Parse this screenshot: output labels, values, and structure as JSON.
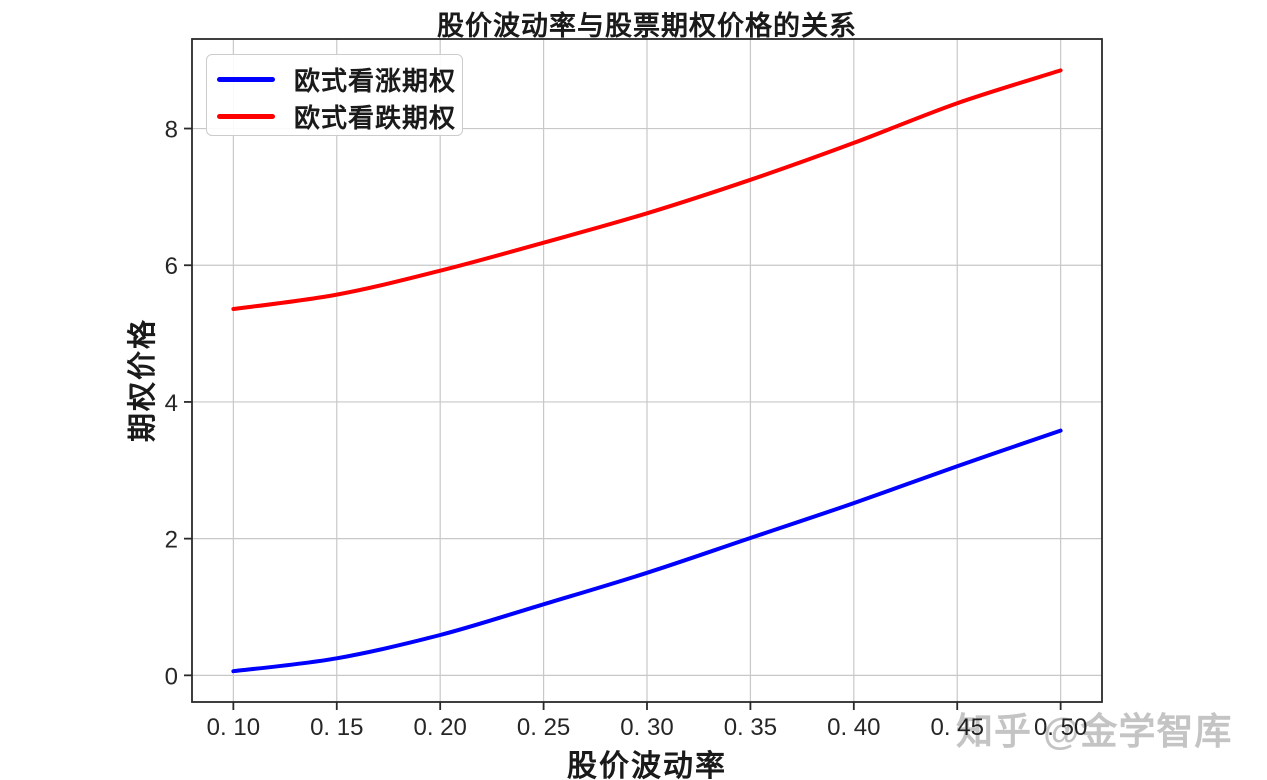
{
  "figure": {
    "background": "#ffffff"
  },
  "chart_data": {
    "type": "line",
    "title": "股价波动率与股票期权价格的关系",
    "xlabel": "股价波动率",
    "ylabel": "期权价格",
    "xlim": [
      0.08,
      0.52
    ],
    "ylim": [
      -0.39,
      9.31
    ],
    "x_ticks": [
      0.1,
      0.15,
      0.2,
      0.25,
      0.3,
      0.35,
      0.4,
      0.45,
      0.5
    ],
    "x_tick_labels": [
      "0. 10",
      "0. 15",
      "0. 20",
      "0. 25",
      "0. 30",
      "0. 35",
      "0. 40",
      "0. 45",
      "0. 50"
    ],
    "y_ticks": [
      0,
      2,
      4,
      6,
      8
    ],
    "y_tick_labels": [
      "0",
      "2",
      "4",
      "6",
      "8"
    ],
    "grid": true,
    "grid_color": "#c8c8c8",
    "spine_color": "#2a2a2a",
    "legend_position": "upper left",
    "x": [
      0.1,
      0.15,
      0.2,
      0.25,
      0.3,
      0.35,
      0.4,
      0.45,
      0.5
    ],
    "series": [
      {
        "name": "欧式看涨期权",
        "color": "#0000ff",
        "values": [
          0.06,
          0.25,
          0.59,
          1.04,
          1.5,
          2.01,
          2.52,
          3.06,
          3.58
        ]
      },
      {
        "name": "欧式看跌期权",
        "color": "#ff0000",
        "values": [
          5.36,
          5.57,
          5.92,
          6.33,
          6.76,
          7.25,
          7.79,
          8.37,
          8.85
        ]
      }
    ]
  },
  "watermark": {
    "text": "知乎 @金学智库",
    "color": "#c4c4c4"
  }
}
